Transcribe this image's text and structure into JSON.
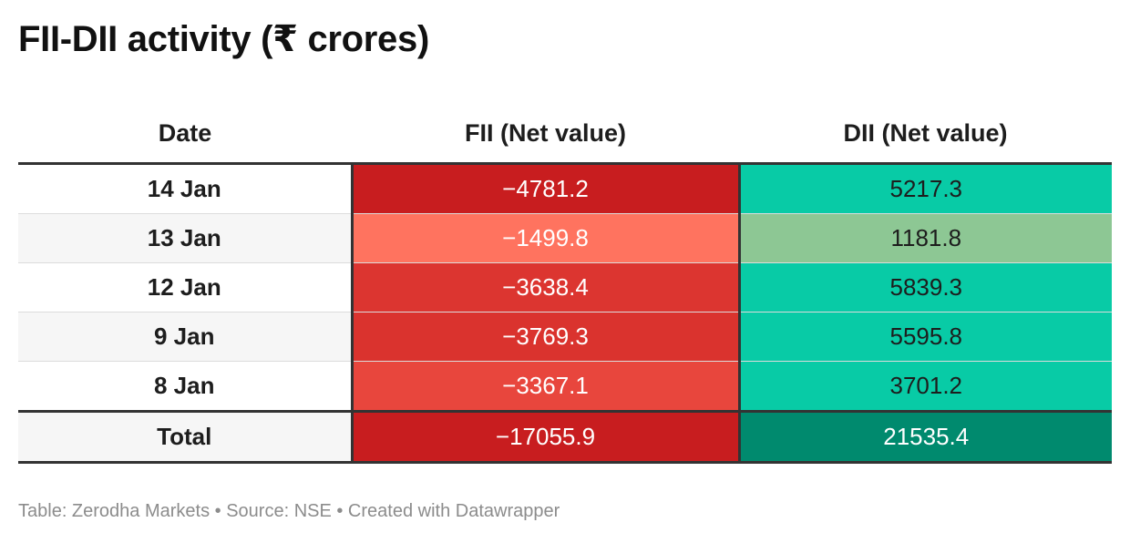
{
  "title": "FII-DII activity (₹ crores)",
  "chart_data": {
    "type": "table",
    "title": "FII-DII activity (₹ crores)",
    "columns": [
      "Date",
      "FII (Net value)",
      "DII (Net value)"
    ],
    "rows": [
      {
        "date": "14 Jan",
        "fii": "−4781.2",
        "dii": "5217.3",
        "fii_value": -4781.2,
        "dii_value": 5217.3
      },
      {
        "date": "13 Jan",
        "fii": "−1499.8",
        "dii": "1181.8",
        "fii_value": -1499.8,
        "dii_value": 1181.8
      },
      {
        "date": "12 Jan",
        "fii": "−3638.4",
        "dii": "5839.3",
        "fii_value": -3638.4,
        "dii_value": 5839.3
      },
      {
        "date": "9 Jan",
        "fii": "−3769.3",
        "dii": "5595.8",
        "fii_value": -3769.3,
        "dii_value": 5595.8
      },
      {
        "date": "8 Jan",
        "fii": "−3367.1",
        "dii": "3701.2",
        "fii_value": -3367.1,
        "dii_value": 3701.2
      }
    ],
    "total": {
      "date": "Total",
      "fii": "−17055.9",
      "dii": "21535.4",
      "fii_value": -17055.9,
      "dii_value": 21535.4
    }
  },
  "colors": {
    "fii": [
      "#c81d1f",
      "#ff735f",
      "#dc3530",
      "#da332e",
      "#e8463d"
    ],
    "dii": [
      "#08cba6",
      "#8dc794",
      "#08cba6",
      "#08cba6",
      "#08cba6"
    ],
    "fii_total": "#c81d1f",
    "dii_total": "#008a6e",
    "text_light": "#ffffff",
    "text_dark": "#1d1d1d"
  },
  "footer": "Table: Zerodha Markets • Source: NSE • Created with Datawrapper"
}
